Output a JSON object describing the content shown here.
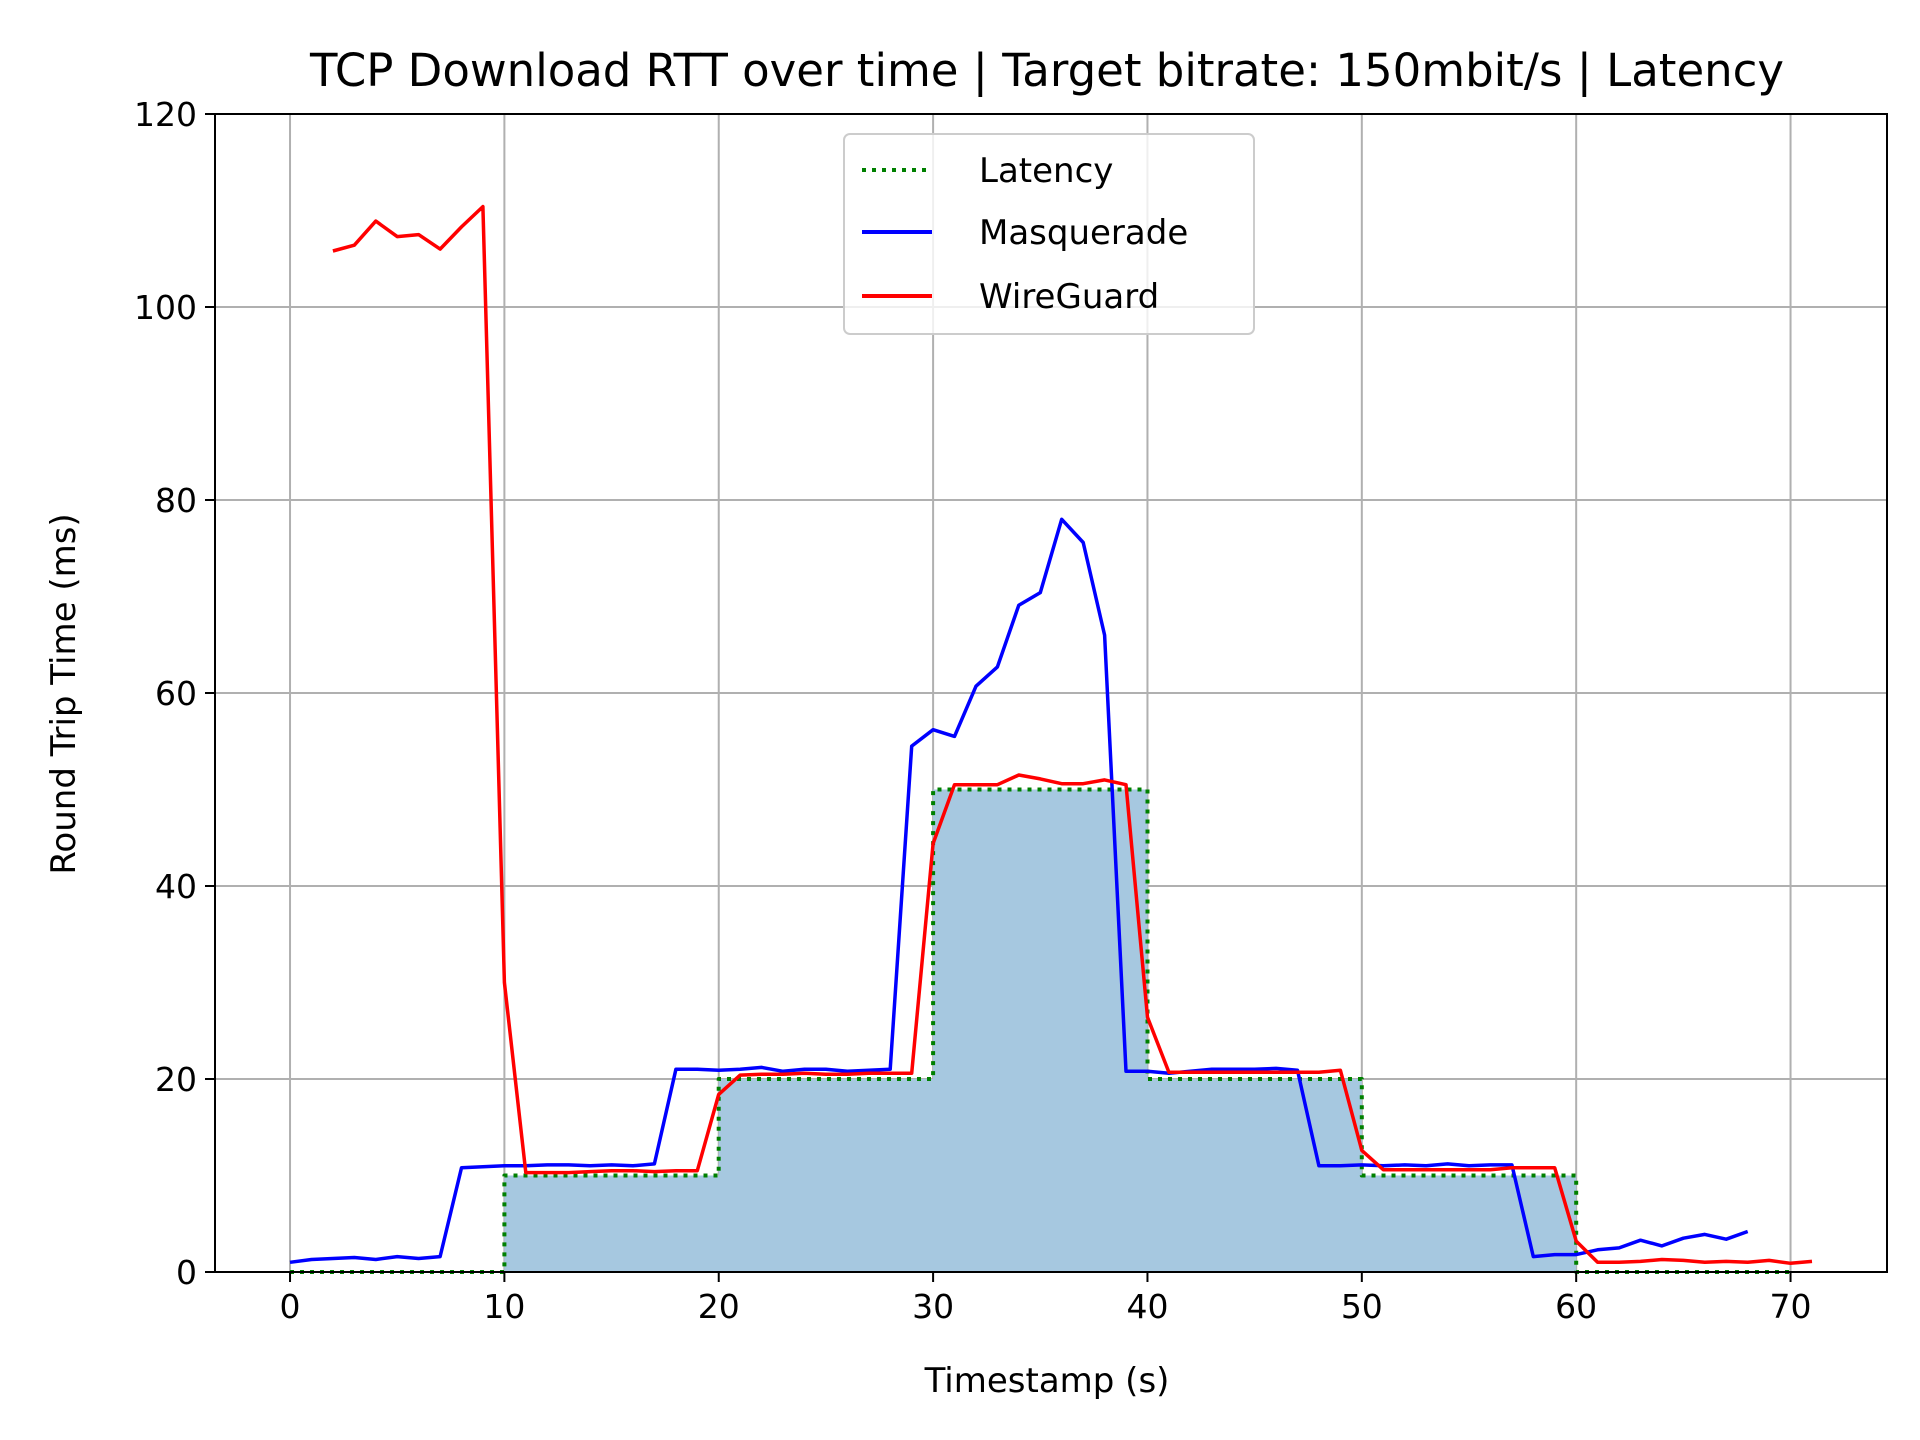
{
  "chart_data": {
    "type": "line",
    "title": "TCP Download RTT over time | Target bitrate: 150mbit/s | Latency",
    "xlabel": "Timestamp (s)",
    "ylabel": "Round Trip Time (ms)",
    "xlim": [
      -3.5,
      74.5
    ],
    "ylim": [
      0,
      120
    ],
    "xticks": [
      0,
      10,
      20,
      30,
      40,
      50,
      60,
      70
    ],
    "yticks": [
      0,
      20,
      40,
      60,
      80,
      100,
      120
    ],
    "grid": true,
    "legend_position": "top-center",
    "latency_fill_color": "#a6c8e0",
    "series": [
      {
        "name": "Latency",
        "color": "#008000",
        "style": "dotted-step",
        "x": [
          0,
          10,
          10,
          20,
          20,
          30,
          30,
          40,
          40,
          50,
          50,
          60,
          60,
          70
        ],
        "y": [
          0,
          0,
          10,
          10,
          20,
          20,
          50,
          50,
          20,
          20,
          10,
          10,
          0,
          0
        ]
      },
      {
        "name": "Masquerade",
        "color": "#0000ff",
        "style": "solid",
        "x": [
          0,
          1,
          2,
          3,
          4,
          5,
          6,
          7,
          8,
          9,
          10,
          11,
          12,
          13,
          14,
          15,
          16,
          17,
          18,
          19,
          20,
          21,
          22,
          23,
          24,
          25,
          26,
          27,
          28,
          29,
          30,
          31,
          32,
          33,
          34,
          35,
          36,
          37,
          38,
          39,
          40,
          41,
          42,
          43,
          44,
          45,
          46,
          47,
          48,
          49,
          50,
          51,
          52,
          53,
          54,
          55,
          56,
          57,
          58,
          59,
          60,
          61,
          62,
          63,
          64,
          65,
          66,
          67,
          68
        ],
        "y": [
          1.0,
          1.3,
          1.4,
          1.5,
          1.3,
          1.6,
          1.4,
          1.6,
          10.8,
          10.9,
          11.0,
          11.0,
          11.1,
          11.1,
          11.0,
          11.1,
          11.0,
          11.2,
          21.0,
          21.0,
          20.9,
          21.0,
          21.2,
          20.8,
          21.0,
          21.0,
          20.8,
          20.9,
          21.0,
          54.5,
          56.2,
          55.5,
          60.7,
          62.7,
          69.1,
          70.4,
          78.0,
          75.6,
          66.0,
          20.8,
          20.8,
          20.6,
          20.8,
          21.0,
          21.0,
          21.0,
          21.1,
          20.9,
          11.0,
          11.0,
          11.1,
          11.0,
          11.1,
          11.0,
          11.2,
          11.0,
          11.1,
          11.1,
          1.6,
          1.8,
          1.8,
          2.3,
          2.5,
          3.3,
          2.7,
          3.5,
          3.9,
          3.4,
          4.2
        ]
      },
      {
        "name": "WireGuard",
        "color": "#ff0000",
        "style": "solid",
        "x": [
          2,
          3,
          4,
          5,
          6,
          7,
          8,
          9,
          10,
          11,
          12,
          13,
          14,
          15,
          16,
          17,
          18,
          19,
          20,
          21,
          22,
          23,
          24,
          25,
          26,
          27,
          28,
          29,
          30,
          31,
          32,
          33,
          34,
          35,
          36,
          37,
          38,
          39,
          40,
          41,
          42,
          43,
          44,
          45,
          46,
          47,
          48,
          49,
          50,
          51,
          52,
          53,
          54,
          55,
          56,
          57,
          58,
          59,
          60,
          61,
          62,
          63,
          64,
          65,
          66,
          67,
          68,
          69,
          70,
          71
        ],
        "y": [
          105.8,
          106.4,
          108.9,
          107.3,
          107.5,
          106.0,
          108.3,
          110.4,
          30.0,
          10.3,
          10.3,
          10.3,
          10.4,
          10.5,
          10.5,
          10.4,
          10.5,
          10.5,
          18.4,
          20.4,
          20.5,
          20.5,
          20.6,
          20.5,
          20.5,
          20.6,
          20.6,
          20.6,
          44.4,
          50.5,
          50.5,
          50.5,
          51.5,
          51.1,
          50.6,
          50.6,
          51.0,
          50.5,
          26.4,
          20.7,
          20.7,
          20.7,
          20.7,
          20.7,
          20.7,
          20.7,
          20.7,
          20.9,
          12.6,
          10.6,
          10.6,
          10.6,
          10.6,
          10.6,
          10.6,
          10.8,
          10.8,
          10.8,
          3.2,
          1.0,
          1.0,
          1.1,
          1.3,
          1.2,
          1.0,
          1.1,
          1.0,
          1.2,
          0.9,
          1.1
        ]
      }
    ]
  }
}
